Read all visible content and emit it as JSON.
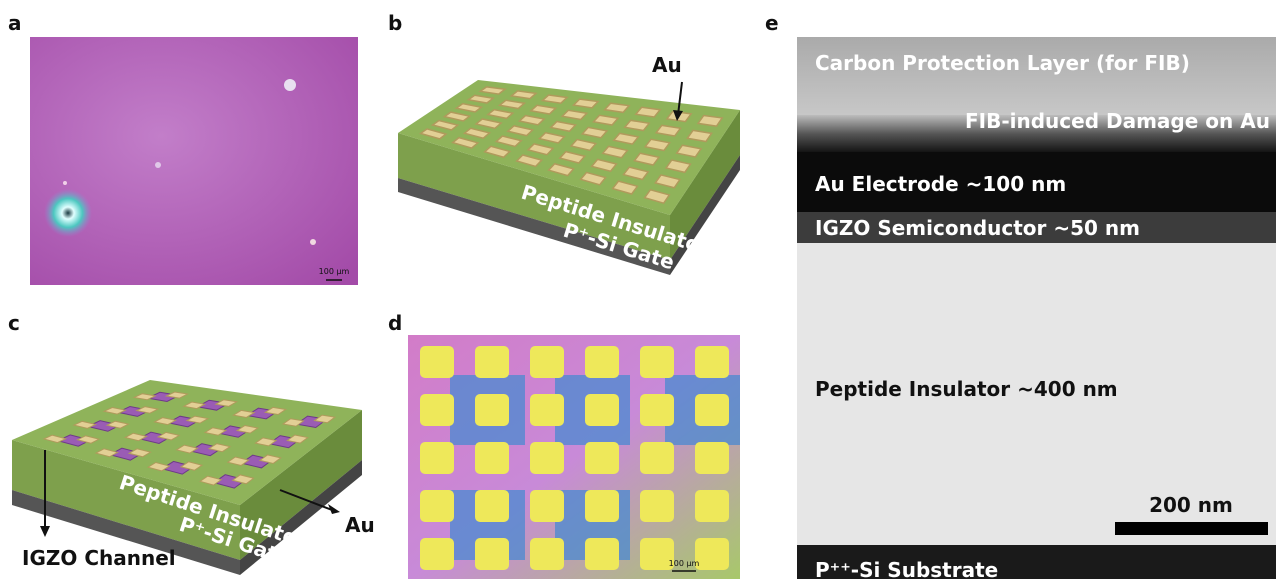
{
  "panels": {
    "a": {
      "label": "a",
      "scale_bar": "100 μm"
    },
    "b": {
      "label": "b",
      "au": "Au",
      "insulator": "Peptide Insulator",
      "gate": "P⁺-Si Gate"
    },
    "c": {
      "label": "c",
      "channel": "IGZO Channel",
      "au": "Au",
      "insulator": "Peptide Insulator",
      "gate": "P⁺-Si Gate"
    },
    "d": {
      "label": "d",
      "scale_bar": "100 μm"
    },
    "e": {
      "label": "e",
      "layers": [
        "Carbon Protection Layer (for FIB)",
        "FIB-induced Damage on Au",
        "Au Electrode ~100 nm",
        "IGZO Semiconductor ~50 nm",
        "Peptide Insulator ~400 nm",
        "P⁺⁺-Si Substrate"
      ],
      "scale_bar": "200 nm"
    }
  }
}
